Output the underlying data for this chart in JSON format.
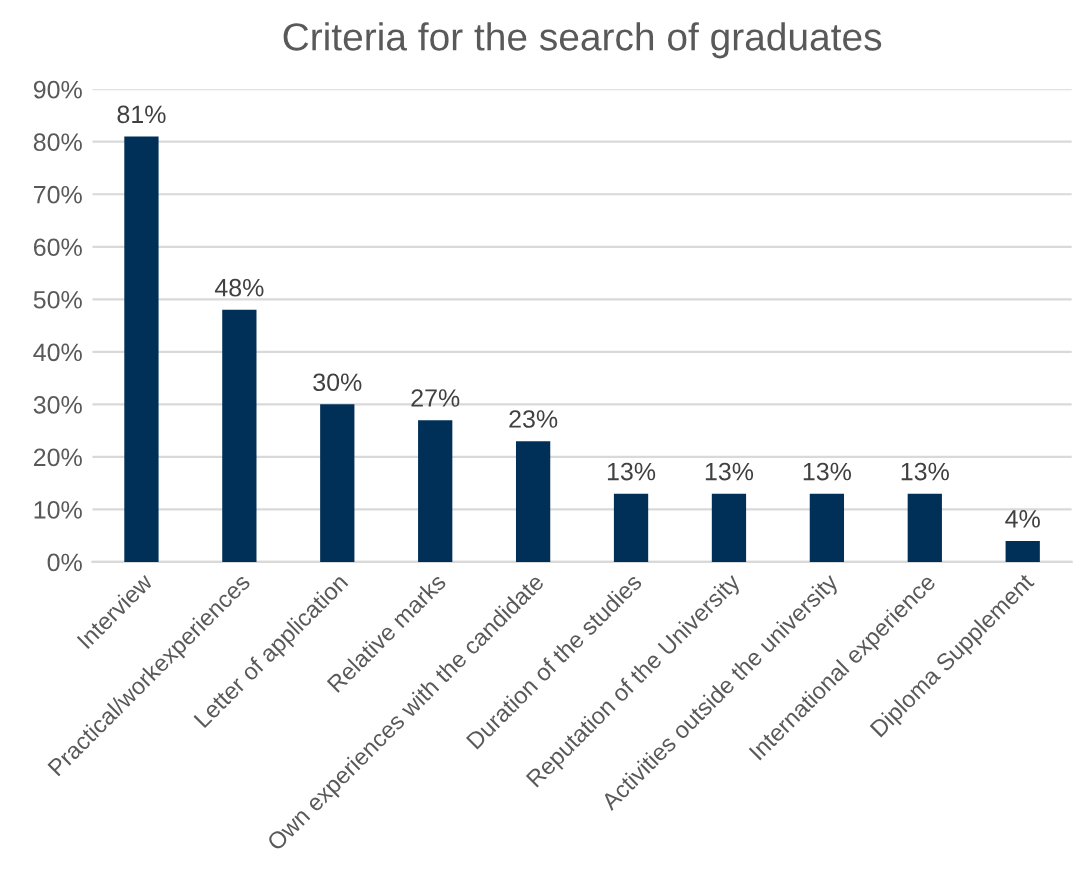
{
  "chart_data": {
    "type": "bar",
    "title": "Criteria for the search of graduates",
    "categories": [
      "Interview",
      "Practical/workexperiences",
      "Letter of application",
      "Relative marks",
      "Own experiences with the candidate",
      "Duration of the studies",
      "Reputation of the University",
      "Activities outside the university",
      "International experience",
      "Diploma Supplement"
    ],
    "values": [
      81,
      48,
      30,
      27,
      23,
      13,
      13,
      13,
      13,
      4
    ],
    "value_labels": [
      "81%",
      "48%",
      "30%",
      "27%",
      "23%",
      "13%",
      "13%",
      "13%",
      "13%",
      "4%"
    ],
    "color": "#003057",
    "ylim": [
      0,
      90
    ],
    "yticks": [
      {
        "value": 0,
        "label": "0%"
      },
      {
        "value": 10,
        "label": "10%"
      },
      {
        "value": 20,
        "label": "20%"
      },
      {
        "value": 30,
        "label": "30%"
      },
      {
        "value": 40,
        "label": "40%"
      },
      {
        "value": 50,
        "label": "50%"
      },
      {
        "value": 60,
        "label": "60%"
      },
      {
        "value": 70,
        "label": "70%"
      },
      {
        "value": 80,
        "label": "80%"
      },
      {
        "value": 90,
        "label": "90%"
      }
    ],
    "grid": "y",
    "legend": false
  }
}
